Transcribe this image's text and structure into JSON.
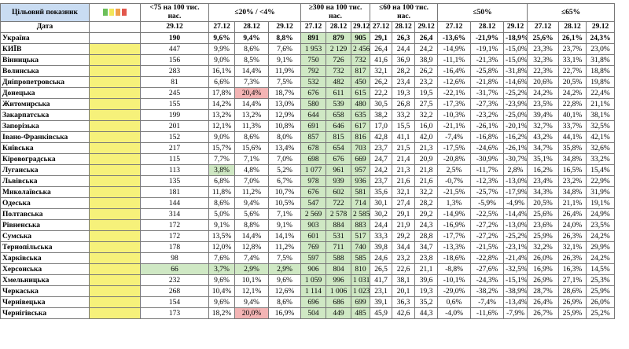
{
  "table": {
    "header": [
      "Цільовий показник",
      "<75 на 100 тис. нас.",
      "≤20% / <4%",
      "≥300 на 100 тис. нас.",
      "≤60 на 100 тис. нас.",
      "≤50%",
      "≤65%"
    ],
    "date_label": "Дата",
    "dates": [
      "29.12",
      "27.12",
      "28.12",
      "29.12",
      "27.12",
      "28.12",
      "29.12",
      "27.12",
      "28.12",
      "29.12",
      "27.12",
      "28.12",
      "29.12",
      "27.12",
      "28.12",
      "29.12"
    ],
    "rows": [
      {
        "name": "Україна",
        "values": [
          "190",
          "9,6%",
          "9,4%",
          "8,8%",
          "891",
          "879",
          "905",
          "29,1",
          "26,3",
          "26,4",
          "-13,6%",
          "-21,9%",
          "-18,9%",
          "25,6%",
          "26,1%",
          "24,3%"
        ]
      },
      {
        "name": "КИЇВ",
        "values": [
          "447",
          "9,9%",
          "8,6%",
          "7,6%",
          "1 953",
          "2 129",
          "2 456",
          "26,4",
          "24,4",
          "24,2",
          "-14,9%",
          "-19,1%",
          "-15,0%",
          "23,3%",
          "23,7%",
          "23,0%"
        ]
      },
      {
        "name": "Вінницька",
        "values": [
          "156",
          "9,0%",
          "8,5%",
          "9,1%",
          "750",
          "726",
          "732",
          "41,6",
          "36,9",
          "38,9",
          "-11,1%",
          "-21,3%",
          "-15,0%",
          "32,3%",
          "33,1%",
          "31,8%"
        ]
      },
      {
        "name": "Волинська",
        "values": [
          "283",
          "16,1%",
          "14,4%",
          "11,9%",
          "792",
          "732",
          "817",
          "32,1",
          "28,2",
          "26,2",
          "-16,4%",
          "-25,8%",
          "-31,8%",
          "22,3%",
          "22,7%",
          "18,8%"
        ]
      },
      {
        "name": "Дніпропетровська",
        "values": [
          "81",
          "6,6%",
          "7,3%",
          "7,5%",
          "532",
          "482",
          "450",
          "26,2",
          "23,4",
          "23,2",
          "-12,6%",
          "-21,8%",
          "-14,6%",
          "20,6%",
          "20,5%",
          "19,8%"
        ]
      },
      {
        "name": "Донецька",
        "values": [
          "245",
          "17,8%",
          "20,4%",
          "18,7%",
          "676",
          "611",
          "615",
          "22,2",
          "19,3",
          "19,5",
          "-22,1%",
          "-31,7%",
          "-25,2%",
          "24,2%",
          "24,2%",
          "22,4%"
        ]
      },
      {
        "name": "Житомирська",
        "values": [
          "155",
          "14,2%",
          "14,4%",
          "13,0%",
          "580",
          "539",
          "480",
          "30,5",
          "26,8",
          "27,5",
          "-17,3%",
          "-27,3%",
          "-23,9%",
          "23,5%",
          "22,8%",
          "21,1%"
        ]
      },
      {
        "name": "Закарпатська",
        "values": [
          "199",
          "13,2%",
          "13,2%",
          "12,9%",
          "644",
          "658",
          "635",
          "38,2",
          "33,2",
          "32,2",
          "-10,3%",
          "-23,2%",
          "-25,0%",
          "39,4%",
          "40,1%",
          "38,1%"
        ]
      },
      {
        "name": "Запорізька",
        "values": [
          "201",
          "12,1%",
          "11,3%",
          "10,8%",
          "691",
          "646",
          "617",
          "17,0",
          "15,5",
          "16,0",
          "-21,1%",
          "-26,1%",
          "-20,1%",
          "32,7%",
          "33,7%",
          "32,5%"
        ]
      },
      {
        "name": "Івано-Франківська",
        "values": [
          "152",
          "9,0%",
          "8,6%",
          "8,0%",
          "857",
          "815",
          "816",
          "42,8",
          "41,1",
          "42,0",
          "-7,4%",
          "-16,8%",
          "-16,2%",
          "43,2%",
          "44,1%",
          "42,1%"
        ]
      },
      {
        "name": "Київська",
        "values": [
          "217",
          "15,7%",
          "15,6%",
          "13,4%",
          "678",
          "654",
          "703",
          "23,7",
          "21,5",
          "21,3",
          "-17,5%",
          "-24,6%",
          "-26,1%",
          "34,7%",
          "35,8%",
          "32,6%"
        ]
      },
      {
        "name": "Кіровоградська",
        "values": [
          "115",
          "7,7%",
          "7,1%",
          "7,0%",
          "698",
          "676",
          "669",
          "24,7",
          "21,4",
          "20,9",
          "-20,8%",
          "-30,9%",
          "-30,7%",
          "35,1%",
          "34,8%",
          "33,2%"
        ]
      },
      {
        "name": "Луганська",
        "values": [
          "113",
          "3,8%",
          "4,8%",
          "5,2%",
          "1 077",
          "961",
          "957",
          "24,2",
          "21,3",
          "21,8",
          "2,5%",
          "-11,7%",
          "2,8%",
          "16,2%",
          "16,5%",
          "15,4%"
        ]
      },
      {
        "name": "Львівська",
        "values": [
          "135",
          "6,8%",
          "7,0%",
          "6,7%",
          "978",
          "939",
          "936",
          "23,7",
          "21,6",
          "21,6",
          "-0,7%",
          "-12,3%",
          "-13,0%",
          "23,4%",
          "23,2%",
          "22,9%"
        ]
      },
      {
        "name": "Миколаївська",
        "values": [
          "181",
          "11,8%",
          "11,2%",
          "10,7%",
          "676",
          "602",
          "581",
          "35,6",
          "32,1",
          "32,2",
          "-21,5%",
          "-25,7%",
          "-17,9%",
          "34,3%",
          "34,8%",
          "31,9%"
        ]
      },
      {
        "name": "Одеська",
        "values": [
          "144",
          "8,6%",
          "9,4%",
          "10,5%",
          "547",
          "722",
          "714",
          "30,1",
          "27,4",
          "28,2",
          "1,3%",
          "-5,9%",
          "-4,9%",
          "20,5%",
          "21,1%",
          "19,1%"
        ]
      },
      {
        "name": "Полтавська",
        "values": [
          "314",
          "5,0%",
          "5,6%",
          "7,1%",
          "2 569",
          "2 578",
          "2 585",
          "30,2",
          "29,1",
          "29,2",
          "-14,9%",
          "-22,5%",
          "-14,4%",
          "25,6%",
          "26,4%",
          "24,9%"
        ]
      },
      {
        "name": "Рівненська",
        "values": [
          "172",
          "9,1%",
          "8,8%",
          "9,1%",
          "903",
          "884",
          "883",
          "24,4",
          "21,9",
          "24,3",
          "-16,9%",
          "-27,2%",
          "-13,0%",
          "23,6%",
          "24,0%",
          "23,5%"
        ]
      },
      {
        "name": "Сумська",
        "values": [
          "172",
          "13,5%",
          "14,4%",
          "14,1%",
          "601",
          "531",
          "517",
          "33,3",
          "29,2",
          "28,8",
          "-17,7%",
          "-27,2%",
          "-25,2%",
          "25,9%",
          "26,3%",
          "24,2%"
        ]
      },
      {
        "name": "Тернопільська",
        "values": [
          "178",
          "12,0%",
          "12,8%",
          "11,2%",
          "769",
          "711",
          "740",
          "39,8",
          "34,4",
          "34,7",
          "-13,3%",
          "-21,5%",
          "-23,1%",
          "32,2%",
          "32,1%",
          "29,9%"
        ]
      },
      {
        "name": "Харківська",
        "values": [
          "98",
          "7,6%",
          "7,4%",
          "7,5%",
          "597",
          "588",
          "585",
          "24,6",
          "23,2",
          "23,8",
          "-18,6%",
          "-22,8%",
          "-21,4%",
          "26,0%",
          "26,3%",
          "24,2%"
        ]
      },
      {
        "name": "Херсонська",
        "values": [
          "66",
          "3,7%",
          "2,9%",
          "2,9%",
          "906",
          "804",
          "810",
          "26,5",
          "22,6",
          "21,1",
          "-8,8%",
          "-27,6%",
          "-32,5%",
          "16,9%",
          "16,3%",
          "14,5%"
        ]
      },
      {
        "name": "Хмельницька",
        "values": [
          "232",
          "9,6%",
          "10,1%",
          "9,6%",
          "1 059",
          "996",
          "1 031",
          "41,7",
          "38,1",
          "39,6",
          "-10,1%",
          "-24,3%",
          "-15,1%",
          "26,9%",
          "27,1%",
          "25,3%"
        ]
      },
      {
        "name": "Черкаська",
        "values": [
          "268",
          "10,4%",
          "12,1%",
          "12,6%",
          "1 114",
          "1 006",
          "1 023",
          "23,1",
          "20,1",
          "19,3",
          "-29,0%",
          "-38,2%",
          "-38,9%",
          "28,7%",
          "28,6%",
          "25,9%"
        ]
      },
      {
        "name": "Чернівецька",
        "values": [
          "154",
          "9,6%",
          "9,4%",
          "8,6%",
          "696",
          "686",
          "699",
          "39,1",
          "36,3",
          "35,2",
          "0,6%",
          "-7,4%",
          "-13,4%",
          "26,4%",
          "26,9%",
          "26,0%"
        ]
      },
      {
        "name": "Чернігівська",
        "values": [
          "173",
          "18,2%",
          "20,0%",
          "16,9%",
          "504",
          "449",
          "485",
          "45,9",
          "42,6",
          "44,3",
          "-4,0%",
          "-11,6%",
          "-7,9%",
          "26,7%",
          "25,9%",
          "25,2%"
        ]
      }
    ]
  }
}
